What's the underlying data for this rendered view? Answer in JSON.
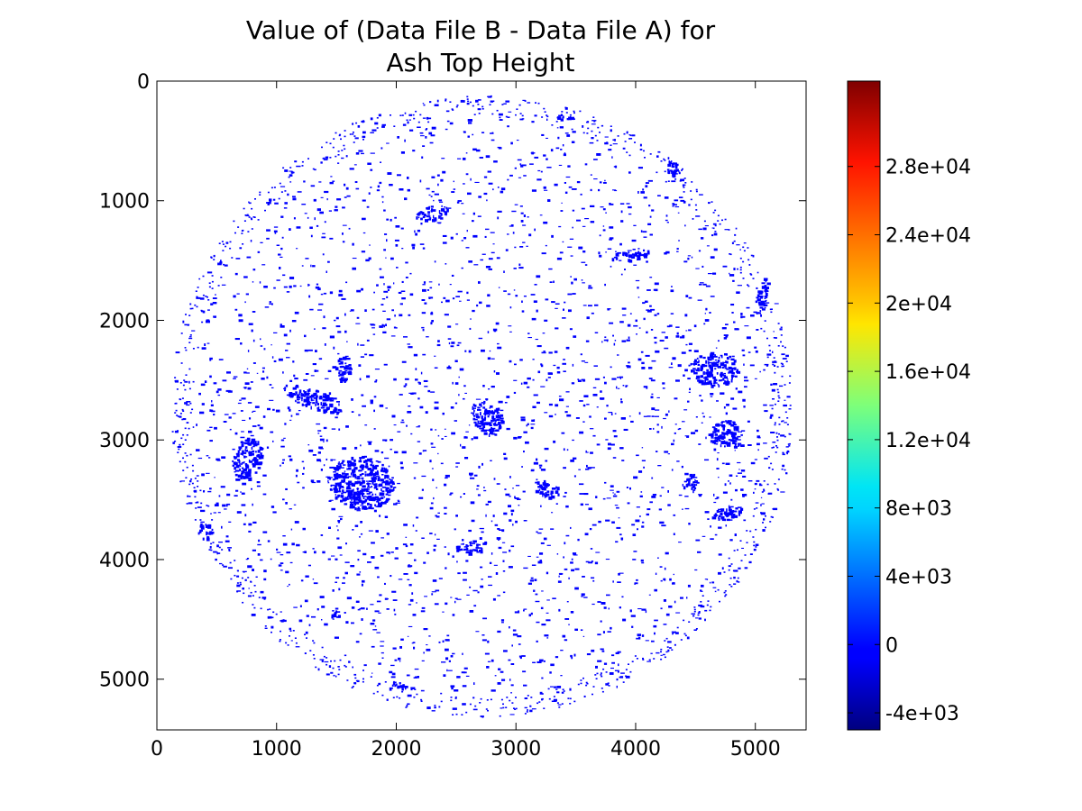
{
  "chart_data": {
    "type": "heatmap",
    "title_lines": [
      "Value of (Data File B - Data File A) for",
      "Ash Top Height"
    ],
    "xlabel": "",
    "ylabel": "",
    "xlim": [
      0,
      5424
    ],
    "ylim": [
      5424,
      0
    ],
    "x_ticks": [
      0,
      1000,
      2000,
      3000,
      4000,
      5000
    ],
    "x_tick_labels": [
      "0",
      "1000",
      "2000",
      "3000",
      "4000",
      "5000"
    ],
    "y_ticks": [
      0,
      1000,
      2000,
      3000,
      4000,
      5000
    ],
    "y_tick_labels": [
      "0",
      "1000",
      "2000",
      "3000",
      "4000",
      "5000"
    ],
    "grid": false,
    "colormap": "jet",
    "colorbar": {
      "vmin": -5000,
      "vmax": 33000,
      "ticks": [
        -4000,
        0,
        4000,
        8000,
        12000,
        16000,
        20000,
        24000,
        28000
      ],
      "tick_labels": [
        "-4e+03",
        "0",
        "4e+03",
        "8e+03",
        "1.2e+04",
        "1.6e+04",
        "2e+04",
        "2.4e+04",
        "2.8e+04"
      ]
    },
    "disk": {
      "center": [
        2712,
        2712
      ],
      "radius": 2600
    },
    "dominant_value": 0,
    "dominant_color": "#0000ff",
    "patches": [
      {
        "x": 1300,
        "y": 2650,
        "rx": 260,
        "ry": 80,
        "rot": 20
      },
      {
        "x": 1700,
        "y": 3350,
        "rx": 280,
        "ry": 220,
        "rot": 10
      },
      {
        "x": 2600,
        "y": 3900,
        "rx": 130,
        "ry": 45,
        "rot": 0
      },
      {
        "x": 2750,
        "y": 2800,
        "rx": 120,
        "ry": 160,
        "rot": -30
      },
      {
        "x": 3950,
        "y": 1450,
        "rx": 160,
        "ry": 50,
        "rot": -10
      },
      {
        "x": 4650,
        "y": 2400,
        "rx": 200,
        "ry": 140,
        "rot": 0
      },
      {
        "x": 4750,
        "y": 2950,
        "rx": 140,
        "ry": 120,
        "rot": 0
      },
      {
        "x": 5050,
        "y": 1800,
        "rx": 50,
        "ry": 160,
        "rot": 10
      },
      {
        "x": 750,
        "y": 3150,
        "rx": 120,
        "ry": 180,
        "rot": 15
      },
      {
        "x": 1550,
        "y": 2400,
        "rx": 60,
        "ry": 120,
        "rot": 0
      },
      {
        "x": 4300,
        "y": 700,
        "rx": 40,
        "ry": 150,
        "rot": 0
      },
      {
        "x": 400,
        "y": 3750,
        "rx": 60,
        "ry": 70,
        "rot": 0
      },
      {
        "x": 3250,
        "y": 3400,
        "rx": 110,
        "ry": 70,
        "rot": 20
      },
      {
        "x": 4750,
        "y": 3600,
        "rx": 130,
        "ry": 60,
        "rot": -10
      },
      {
        "x": 4450,
        "y": 3350,
        "rx": 60,
        "ry": 80,
        "rot": 0
      },
      {
        "x": 2000,
        "y": 5050,
        "rx": 80,
        "ry": 40,
        "rot": 0
      },
      {
        "x": 950,
        "y": 1000,
        "rx": 50,
        "ry": 20,
        "rot": 0
      },
      {
        "x": 3400,
        "y": 300,
        "rx": 70,
        "ry": 20,
        "rot": 0
      },
      {
        "x": 1500,
        "y": 4450,
        "rx": 50,
        "ry": 40,
        "rot": 0
      },
      {
        "x": 2300,
        "y": 1100,
        "rx": 140,
        "ry": 60,
        "rot": -10
      }
    ]
  }
}
